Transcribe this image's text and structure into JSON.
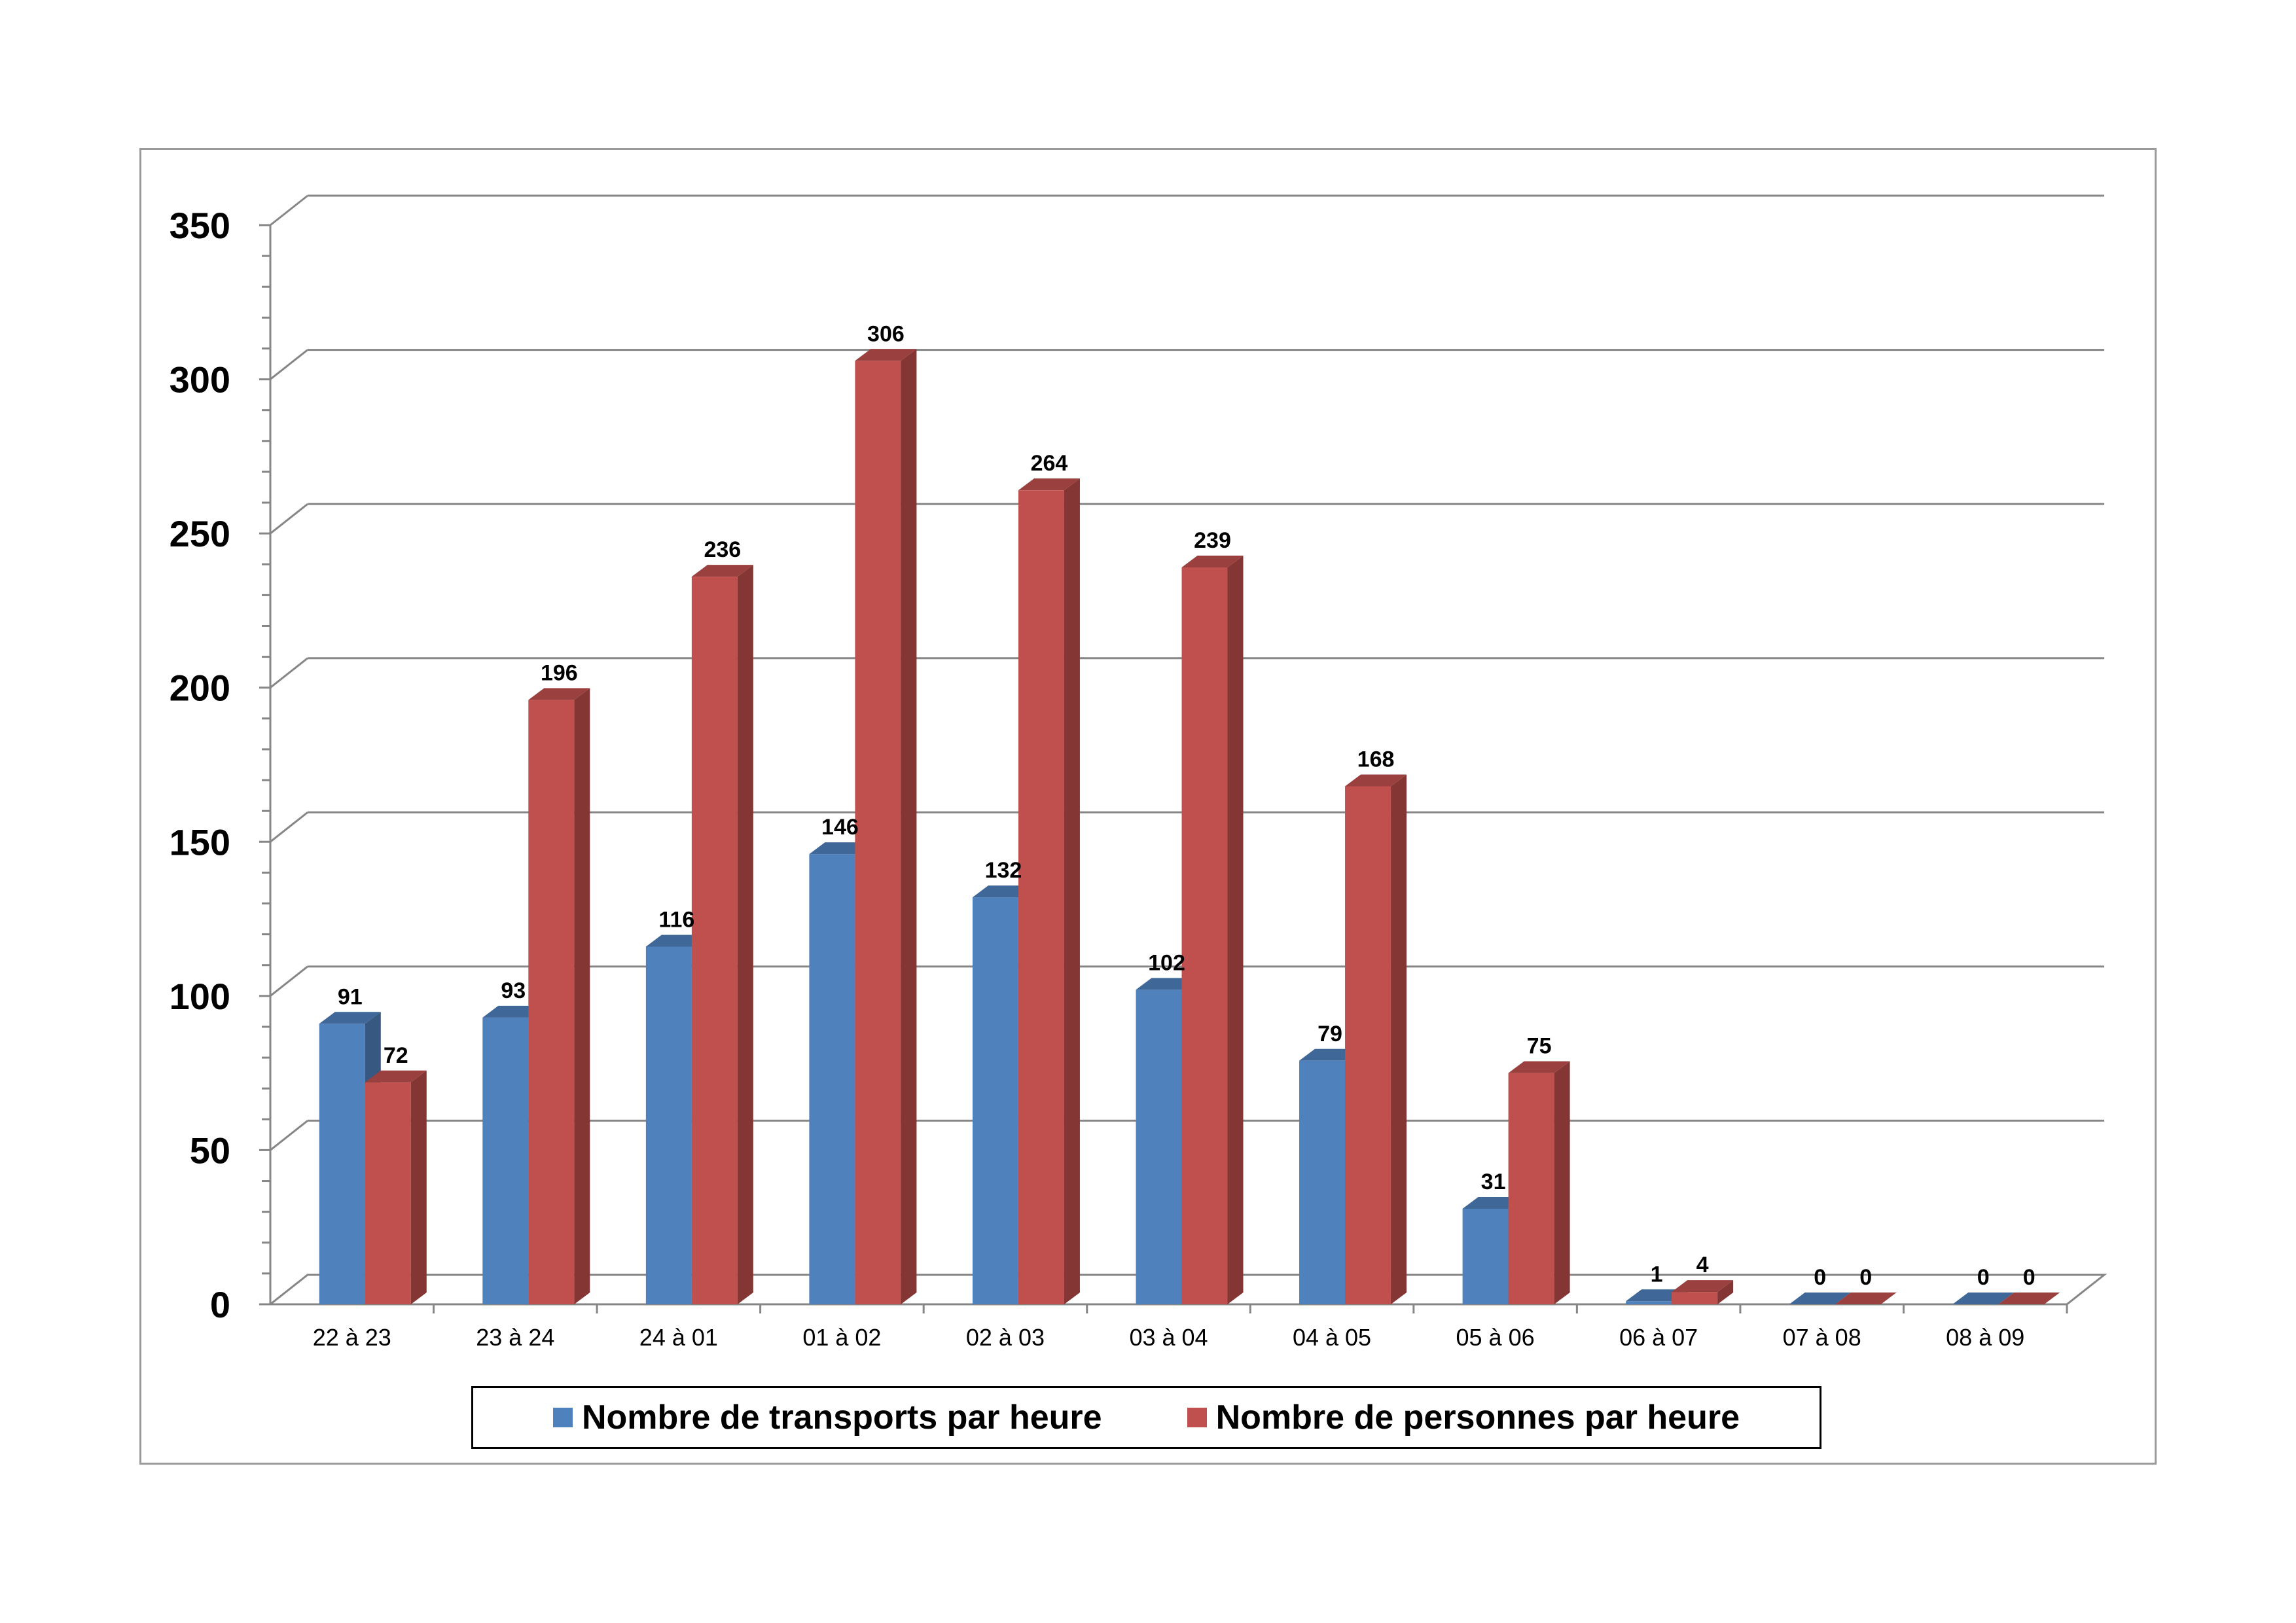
{
  "chart_data": {
    "type": "bar",
    "title": "",
    "xlabel": "",
    "ylabel": "",
    "categories": [
      "22 à 23",
      "23 à 24",
      "24 à 01",
      "01 à 02",
      "02 à 03",
      "03 à 04",
      "04 à 05",
      "05 à 06",
      "06 à 07",
      "07 à 08",
      "08 à 09"
    ],
    "series": [
      {
        "name": "Nombre de transports par heure",
        "color": "#4f81bd",
        "values": [
          91,
          93,
          116,
          146,
          132,
          102,
          79,
          31,
          1,
          0,
          0
        ]
      },
      {
        "name": "Nombre de personnes par heure",
        "color": "#c0504d",
        "values": [
          72,
          196,
          236,
          306,
          264,
          239,
          168,
          75,
          4,
          0,
          0
        ]
      }
    ],
    "ylim": [
      0,
      350
    ],
    "yticks": [
      0,
      50,
      100,
      150,
      200,
      250,
      300,
      350
    ],
    "grid": true,
    "legend_position": "bottom",
    "data_labels": true,
    "style": "3d-clustered-column"
  }
}
